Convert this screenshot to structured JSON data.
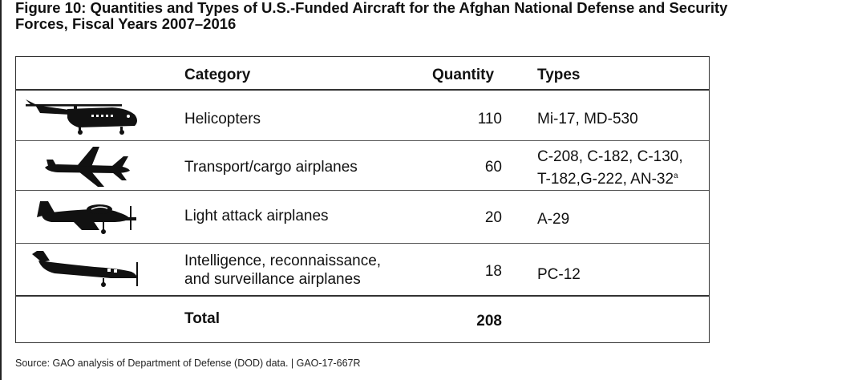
{
  "figure": {
    "title_line1": "Figure 10: Quantities and Types of U.S.-Funded Aircraft for the Afghan National Defense and Security",
    "title_line2": "Forces, Fiscal Years 2007–2016"
  },
  "table": {
    "headers": {
      "category": "Category",
      "quantity": "Quantity",
      "types": "Types"
    },
    "rows": [
      {
        "icon": "helicopter-icon",
        "category_line1": "Helicopters",
        "category_line2": "",
        "quantity": "110",
        "types_line1": "Mi-17, MD-530",
        "types_line2": "",
        "types_sup": ""
      },
      {
        "icon": "cargo-plane-icon",
        "category_line1": "Transport/cargo airplanes",
        "category_line2": "",
        "quantity": "60",
        "types_line1": "C-208, C-182, C-130,",
        "types_line2": "T-182,G-222, AN-32",
        "types_sup": "a"
      },
      {
        "icon": "attack-plane-icon",
        "category_line1": "Light attack airplanes",
        "category_line2": "",
        "quantity": "20",
        "types_line1": "A-29",
        "types_line2": "",
        "types_sup": ""
      },
      {
        "icon": "surveillance-plane-icon",
        "category_line1": "Intelligence, reconnaissance,",
        "category_line2": "and surveillance airplanes",
        "quantity": "18",
        "types_line1": "PC-12",
        "types_line2": "",
        "types_sup": ""
      }
    ],
    "total": {
      "label": "Total",
      "quantity": "208"
    }
  },
  "source": "Source: GAO analysis of Department of Defense (DOD) data.   |  GAO-17-667R"
}
